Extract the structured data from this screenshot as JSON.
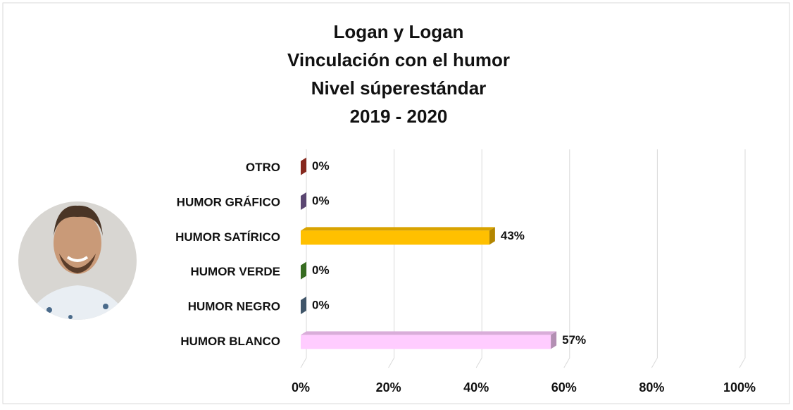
{
  "chart_data": {
    "type": "bar",
    "orientation": "horizontal",
    "title": [
      "Logan y Logan",
      "Vinculación con el humor",
      "Nivel súperestándar",
      "2019 - 2020"
    ],
    "categories": [
      "OTRO",
      "HUMOR GRÁFICO",
      "HUMOR SATÍRICO",
      "HUMOR VERDE",
      "HUMOR NEGRO",
      "HUMOR BLANCO"
    ],
    "values": [
      0,
      0,
      43,
      0,
      0,
      57
    ],
    "value_labels": [
      "0%",
      "0%",
      "43%",
      "0%",
      "0%",
      "57%"
    ],
    "colors": [
      "#c0392b",
      "#8064a2",
      "#ffc000",
      "#4e9a2f",
      "#5b7a96",
      "#ffccff"
    ],
    "xlim": [
      0,
      100
    ],
    "xticks": [
      {
        "value": 0,
        "label": "0%"
      },
      {
        "value": 20,
        "label": "20%"
      },
      {
        "value": 40,
        "label": "40%"
      },
      {
        "value": 60,
        "label": "60%"
      },
      {
        "value": 80,
        "label": "80%"
      },
      {
        "value": 100,
        "label": "100%"
      }
    ],
    "grid": true
  }
}
